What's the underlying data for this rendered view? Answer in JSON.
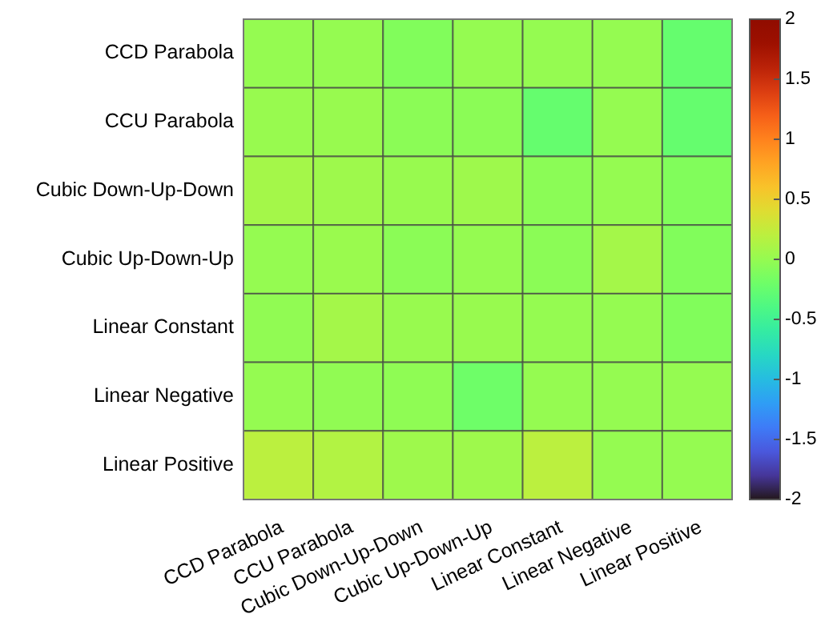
{
  "chart_data": {
    "type": "heatmap",
    "categories": [
      "CCD Parabola",
      "CCU Parabola",
      "Cubic Down-Up-Down",
      "Cubic Up-Down-Up",
      "Linear Constant",
      "Linear Negative",
      "Linear Positive"
    ],
    "y_categories": [
      "CCD Parabola",
      "CCU Parabola",
      "Cubic Down-Up-Down",
      "Cubic Up-Down-Up",
      "Linear Constant",
      "Linear Negative",
      "Linear Positive"
    ],
    "cells": [
      [
        0,
        0,
        -0.1,
        0,
        0,
        0,
        -0.25
      ],
      [
        0.02,
        0.02,
        -0.05,
        -0.05,
        -0.25,
        0,
        -0.25
      ],
      [
        0.08,
        0.05,
        0.02,
        0.05,
        -0.05,
        0,
        -0.1
      ],
      [
        0,
        0.03,
        -0.05,
        0,
        -0.05,
        0.08,
        -0.1
      ],
      [
        -0.02,
        0.08,
        0.02,
        0.02,
        0,
        0,
        -0.1
      ],
      [
        0,
        -0.02,
        -0.03,
        -0.2,
        0,
        0,
        0
      ],
      [
        0.2,
        0.15,
        0.05,
        0.05,
        0.2,
        0,
        0
      ]
    ],
    "clim": [
      -2,
      2
    ],
    "cticks": [
      -2,
      -1.5,
      -1,
      -0.5,
      0,
      0.5,
      1,
      1.5,
      2
    ]
  }
}
